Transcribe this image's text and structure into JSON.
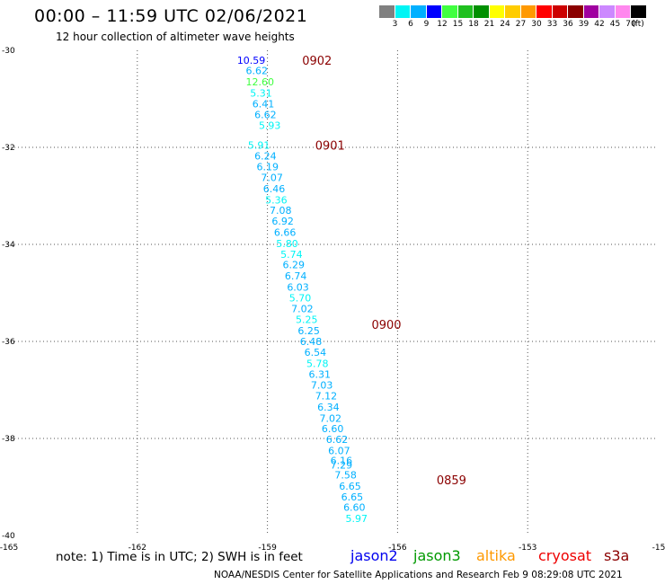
{
  "title": "00:00 – 11:59 UTC 02/06/2021",
  "subtitle": "12 hour collection of altimeter wave heights",
  "colorbar": {
    "colors": [
      "#808080",
      "#00f5f5",
      "#00b0ff",
      "#0000ff",
      "#40ff40",
      "#20c020",
      "#009000",
      "#ffff00",
      "#ffcc00",
      "#ff9900",
      "#ff0000",
      "#cc0000",
      "#8b0000",
      "#a000a0",
      "#cc88ff",
      "#ff88ee",
      "#000000"
    ],
    "labels": [
      "3",
      "6",
      "9",
      "12",
      "15",
      "18",
      "21",
      "24",
      "27",
      "30",
      "33",
      "36",
      "39",
      "42",
      "45",
      "70",
      "(ft)"
    ]
  },
  "chart_data": {
    "type": "scatter",
    "xlim": [
      -165,
      -150
    ],
    "ylim": [
      -40,
      -30
    ],
    "x_ticks": [
      "-165",
      "-162",
      "-159",
      "-156",
      "-153",
      "-15"
    ],
    "y_ticks": [
      "-30",
      "-32",
      "-34",
      "-36",
      "-38",
      "-40"
    ],
    "grid": true,
    "track_times": [
      {
        "label": "0902",
        "lon": -158.2,
        "lat": -30.2
      },
      {
        "label": "0901",
        "lon": -157.9,
        "lat": -31.95
      },
      {
        "label": "0900",
        "lon": -156.6,
        "lat": -35.65
      },
      {
        "label": "0859",
        "lon": -155.1,
        "lat": -38.85
      }
    ],
    "points": [
      {
        "label": "10.59",
        "lon": -159.7,
        "lat": -30.2,
        "color": "#0000ff"
      },
      {
        "label": "6.62",
        "lon": -159.5,
        "lat": -30.42,
        "color": "#00b0ff"
      },
      {
        "label": "12.60",
        "lon": -159.5,
        "lat": -30.65,
        "color": "#40ff40"
      },
      {
        "label": "5.31",
        "lon": -159.4,
        "lat": -30.88,
        "color": "#00f5f5"
      },
      {
        "label": "6.41",
        "lon": -159.35,
        "lat": -31.1,
        "color": "#00b0ff"
      },
      {
        "label": "6.62",
        "lon": -159.3,
        "lat": -31.32,
        "color": "#00b0ff"
      },
      {
        "label": "5.93",
        "lon": -159.2,
        "lat": -31.55,
        "color": "#00f5f5"
      },
      {
        "label": "5.91",
        "lon": -159.45,
        "lat": -31.95,
        "color": "#00f5f5"
      },
      {
        "label": "6.24",
        "lon": -159.3,
        "lat": -32.18,
        "color": "#00b0ff"
      },
      {
        "label": "6.19",
        "lon": -159.25,
        "lat": -32.4,
        "color": "#00b0ff"
      },
      {
        "label": "7.07",
        "lon": -159.15,
        "lat": -32.62,
        "color": "#00b0ff"
      },
      {
        "label": "6.46",
        "lon": -159.1,
        "lat": -32.85,
        "color": "#00b0ff"
      },
      {
        "label": "5.36",
        "lon": -159.05,
        "lat": -33.08,
        "color": "#00f5f5"
      },
      {
        "label": "7.08",
        "lon": -158.95,
        "lat": -33.3,
        "color": "#00b0ff"
      },
      {
        "label": "6.92",
        "lon": -158.9,
        "lat": -33.52,
        "color": "#00b0ff"
      },
      {
        "label": "6.66",
        "lon": -158.85,
        "lat": -33.75,
        "color": "#00b0ff"
      },
      {
        "label": "5.80",
        "lon": -158.8,
        "lat": -33.98,
        "color": "#00f5f5"
      },
      {
        "label": "5.74",
        "lon": -158.7,
        "lat": -34.2,
        "color": "#00f5f5"
      },
      {
        "label": "6.29",
        "lon": -158.65,
        "lat": -34.42,
        "color": "#00b0ff"
      },
      {
        "label": "6.74",
        "lon": -158.6,
        "lat": -34.65,
        "color": "#00b0ff"
      },
      {
        "label": "6.03",
        "lon": -158.55,
        "lat": -34.88,
        "color": "#00b0ff"
      },
      {
        "label": "5.70",
        "lon": -158.5,
        "lat": -35.1,
        "color": "#00f5f5"
      },
      {
        "label": "7.02",
        "lon": -158.45,
        "lat": -35.32,
        "color": "#00b0ff"
      },
      {
        "label": "5.25",
        "lon": -158.35,
        "lat": -35.55,
        "color": "#00f5f5"
      },
      {
        "label": "6.25",
        "lon": -158.3,
        "lat": -35.78,
        "color": "#00b0ff"
      },
      {
        "label": "6.48",
        "lon": -158.25,
        "lat": -36.0,
        "color": "#00b0ff"
      },
      {
        "label": "6.54",
        "lon": -158.15,
        "lat": -36.22,
        "color": "#00b0ff"
      },
      {
        "label": "5.78",
        "lon": -158.1,
        "lat": -36.45,
        "color": "#00f5f5"
      },
      {
        "label": "6.31",
        "lon": -158.05,
        "lat": -36.68,
        "color": "#00b0ff"
      },
      {
        "label": "7.03",
        "lon": -158.0,
        "lat": -36.9,
        "color": "#00b0ff"
      },
      {
        "label": "7.12",
        "lon": -157.9,
        "lat": -37.12,
        "color": "#00b0ff"
      },
      {
        "label": "6.34",
        "lon": -157.85,
        "lat": -37.35,
        "color": "#00b0ff"
      },
      {
        "label": "7.02",
        "lon": -157.8,
        "lat": -37.58,
        "color": "#00b0ff"
      },
      {
        "label": "6.60",
        "lon": -157.75,
        "lat": -37.8,
        "color": "#00b0ff"
      },
      {
        "label": "6.62",
        "lon": -157.65,
        "lat": -38.02,
        "color": "#00b0ff"
      },
      {
        "label": "6.07",
        "lon": -157.6,
        "lat": -38.25,
        "color": "#00b0ff"
      },
      {
        "label": "6.16",
        "lon": -157.55,
        "lat": -38.45,
        "color": "#00b0ff"
      },
      {
        "label": "7.29",
        "lon": -157.55,
        "lat": -38.55,
        "color": "#00b0ff"
      },
      {
        "label": "7.58",
        "lon": -157.45,
        "lat": -38.75,
        "color": "#00b0ff"
      },
      {
        "label": "6.65",
        "lon": -157.35,
        "lat": -38.98,
        "color": "#00b0ff"
      },
      {
        "label": "6.65",
        "lon": -157.3,
        "lat": -39.2,
        "color": "#00b0ff"
      },
      {
        "label": "6.60",
        "lon": -157.25,
        "lat": -39.42,
        "color": "#00b0ff"
      },
      {
        "label": "5.97",
        "lon": -157.2,
        "lat": -39.65,
        "color": "#00f5f5"
      }
    ]
  },
  "note": "note:  1) Time is in UTC;  2) SWH is in feet",
  "satellites": [
    {
      "name": "jason2",
      "color": "#0000ee"
    },
    {
      "name": "jason3",
      "color": "#009900"
    },
    {
      "name": "altika",
      "color": "#ff9900"
    },
    {
      "name": "cryosat",
      "color": "#ee0000"
    },
    {
      "name": "s3a",
      "color": "#8b0000"
    }
  ],
  "credit": "NOAA/NESDIS Center for Satellite Applications and Research   Feb  9 08:29:08 UTC 2021",
  "time_label_color": "#8b0000"
}
